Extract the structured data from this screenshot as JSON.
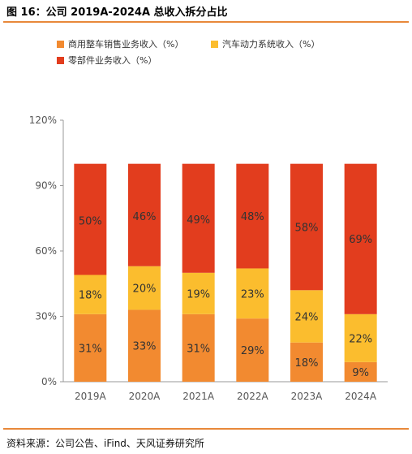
{
  "header": {
    "title": "图 16：公司 2019A-2024A 总收入拆分占比"
  },
  "footer": {
    "source": "资料来源：公司公告、iFind、天风证券研究所"
  },
  "colors": {
    "accent_rule": "#e8883a",
    "axis": "#999999"
  },
  "chart_data": {
    "type": "bar",
    "stacked": true,
    "categories": [
      "2019A",
      "2020A",
      "2021A",
      "2022A",
      "2023A",
      "2024A"
    ],
    "series": [
      {
        "name": "商用整车销售业务收入（%）",
        "color": "#f28a30",
        "values": [
          31,
          33,
          31,
          29,
          18,
          9
        ],
        "labels": [
          "31%",
          "33%",
          "31%",
          "29%",
          "18%",
          "9%"
        ]
      },
      {
        "name": "汽车动力系统收入（%）",
        "color": "#fbbd2e",
        "values": [
          18,
          20,
          19,
          23,
          24,
          22
        ],
        "labels": [
          "18%",
          "20%",
          "19%",
          "23%",
          "24%",
          "22%"
        ]
      },
      {
        "name": "零部件业务收入（%）",
        "color": "#e23d1e",
        "values": [
          50,
          46,
          49,
          48,
          58,
          69
        ],
        "labels": [
          "50%",
          "46%",
          "49%",
          "48%",
          "58%",
          "69%"
        ]
      }
    ],
    "yticks": [
      0,
      30,
      60,
      90,
      120
    ],
    "ytick_labels": [
      "0%",
      "30%",
      "60%",
      "90%",
      "120%"
    ],
    "ylim": [
      0,
      120
    ],
    "grid": false,
    "legend": "top"
  }
}
